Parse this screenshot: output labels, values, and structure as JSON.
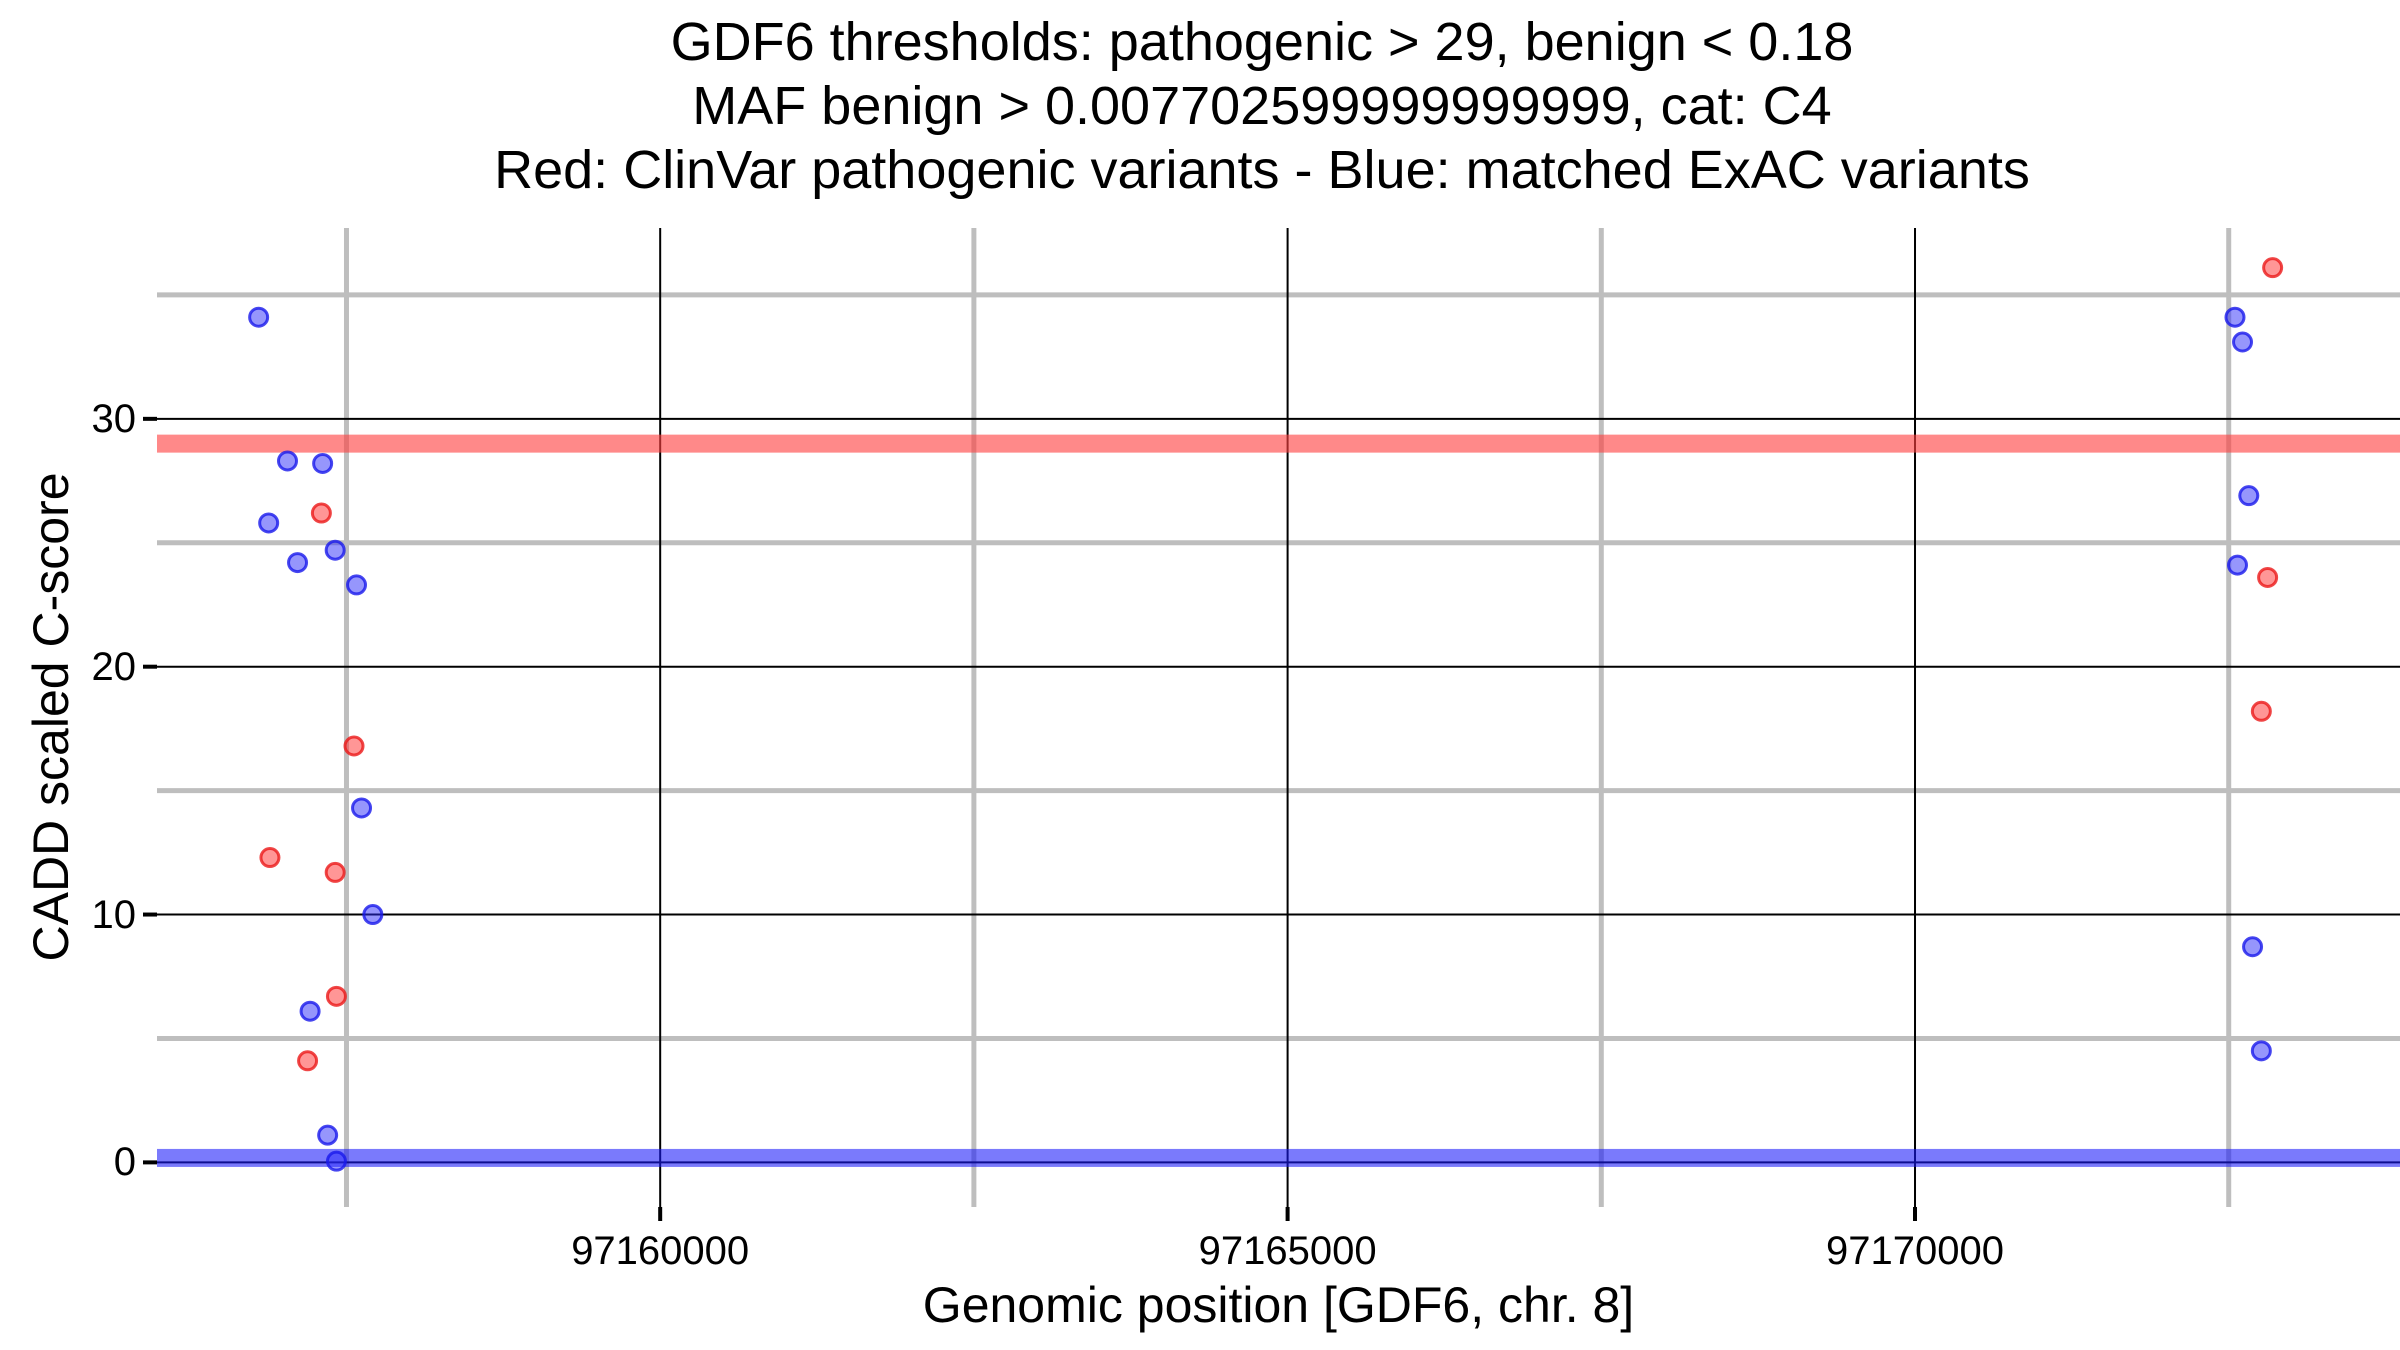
{
  "title": {
    "line1": "GDF6 thresholds: pathogenic > 29, benign < 0.18",
    "line2": "MAF benign > 0.007702599999999999, cat: C4",
    "line3": "Red: ClinVar pathogenic variants - Blue: matched ExAC variants"
  },
  "colors": {
    "red_fill": "rgba(255,45,45,0.5)",
    "red_stroke": "rgba(235,25,25,0.8)",
    "blue_fill": "rgba(45,45,250,0.5)",
    "blue_stroke": "rgba(25,25,235,0.8)",
    "red_band": "rgba(255,64,64,0.62)",
    "blue_band": "rgba(25,25,250,0.58)",
    "grid_minor": "#BEBEBE",
    "grid_major": "#000000",
    "tick": "#000000"
  },
  "chart_data": {
    "type": "scatter",
    "title": "GDF6 thresholds: pathogenic > 29, benign < 0.18 | MAF benign > 0.007702599999999999, cat: C4 | Red: ClinVar pathogenic variants - Blue: matched ExAC variants",
    "xlabel": "Genomic position [GDF6, chr. 8]",
    "ylabel": "CADD scaled C-score",
    "gene": "GDF6",
    "chromosome": "chr. 8",
    "category": "C4",
    "thresholds": {
      "pathogenic_cadd": 29,
      "benign_cadd": 0.18,
      "maf_benign": "0.007702599999999999"
    },
    "x_axis": {
      "range": [
        97155990,
        97173865
      ],
      "ticks": [
        {
          "value": 97160000,
          "label": "97160000"
        },
        {
          "value": 97165000,
          "label": "97165000"
        },
        {
          "value": 97170000,
          "label": "97170000"
        }
      ],
      "minor_ticks": [
        97157500,
        97162500,
        97167500,
        97172500
      ]
    },
    "y_axis": {
      "range": [
        -1.8,
        37.7
      ],
      "ticks": [
        {
          "value": 0,
          "label": "0"
        },
        {
          "value": 10,
          "label": "10"
        },
        {
          "value": 20,
          "label": "20"
        },
        {
          "value": 30,
          "label": "30"
        }
      ],
      "minor_ticks": [
        5,
        15,
        25,
        35
      ]
    },
    "hlines": [
      {
        "name": "pathogenic-threshold",
        "value": 29,
        "color_key": "red_band"
      },
      {
        "name": "benign-threshold",
        "value": 0.18,
        "color_key": "blue_band"
      }
    ],
    "grid": "major-black-thin, minor-gray-thick",
    "legend": "none (encoded in title line 3)",
    "series": [
      {
        "name": "ClinVar pathogenic variants",
        "color": "red",
        "fill_key": "red_fill",
        "stroke_key": "red_stroke",
        "points": [
          {
            "pos": 97157300,
            "cadd": 26.2
          },
          {
            "pos": 97157560,
            "cadd": 16.8
          },
          {
            "pos": 97156890,
            "cadd": 12.3
          },
          {
            "pos": 97157410,
            "cadd": 11.7
          },
          {
            "pos": 97157420,
            "cadd": 6.7
          },
          {
            "pos": 97157190,
            "cadd": 4.1
          },
          {
            "pos": 97172850,
            "cadd": 36.1
          },
          {
            "pos": 97172810,
            "cadd": 23.6
          },
          {
            "pos": 97172760,
            "cadd": 18.2
          }
        ]
      },
      {
        "name": "matched ExAC variants",
        "color": "blue",
        "fill_key": "blue_fill",
        "stroke_key": "blue_stroke",
        "points": [
          {
            "pos": 97156800,
            "cadd": 34.1
          },
          {
            "pos": 97157030,
            "cadd": 28.3
          },
          {
            "pos": 97157310,
            "cadd": 28.2
          },
          {
            "pos": 97156880,
            "cadd": 25.8
          },
          {
            "pos": 97157410,
            "cadd": 24.7
          },
          {
            "pos": 97157110,
            "cadd": 24.2
          },
          {
            "pos": 97157580,
            "cadd": 23.3
          },
          {
            "pos": 97157620,
            "cadd": 14.3
          },
          {
            "pos": 97157710,
            "cadd": 10.0
          },
          {
            "pos": 97157210,
            "cadd": 6.1
          },
          {
            "pos": 97157350,
            "cadd": 1.1
          },
          {
            "pos": 97157420,
            "cadd": 0.05
          },
          {
            "pos": 97172550,
            "cadd": 34.1
          },
          {
            "pos": 97172610,
            "cadd": 33.1
          },
          {
            "pos": 97172660,
            "cadd": 26.9
          },
          {
            "pos": 97172570,
            "cadd": 24.1
          },
          {
            "pos": 97172690,
            "cadd": 8.7
          },
          {
            "pos": 97172760,
            "cadd": 4.5
          }
        ]
      }
    ]
  }
}
